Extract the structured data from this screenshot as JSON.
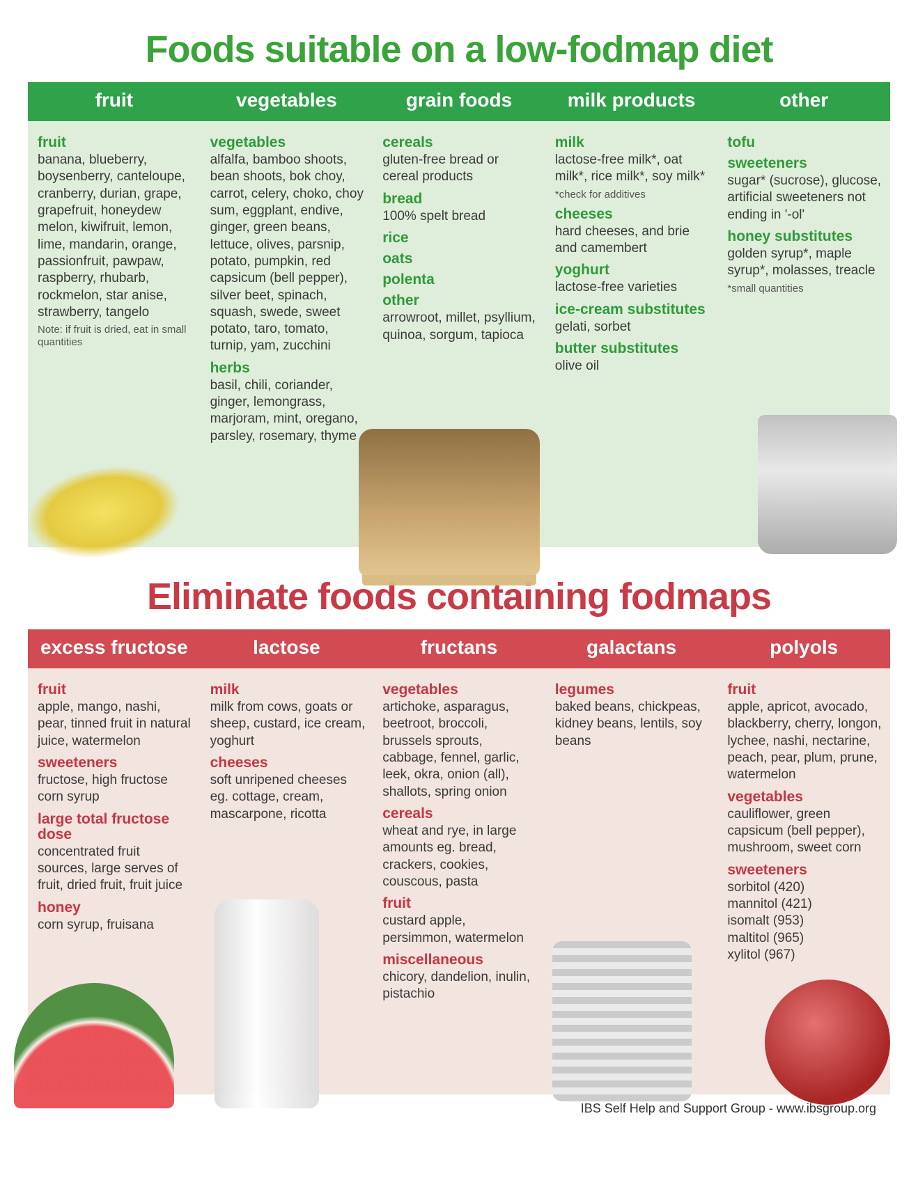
{
  "colors": {
    "green_title": "#3aa33a",
    "green_header_bg": "#2fa24a",
    "green_body_bg": "#dfeeda",
    "green_subhead": "#2f9a3a",
    "red_title": "#c83a46",
    "red_header_bg": "#d24a52",
    "red_body_bg": "#f2e4de",
    "red_subhead": "#c23844",
    "text": "#3a3a3a",
    "white": "#ffffff"
  },
  "typography": {
    "title_fontsize": 54,
    "header_fontsize": 28,
    "subhead_fontsize": 21,
    "body_fontsize": 19,
    "note_fontsize": 15,
    "footer_fontsize": 18
  },
  "suitable": {
    "title": "Foods suitable on a low-fodmap diet",
    "headers": [
      "fruit",
      "vegetables",
      "grain foods",
      "milk products",
      "other"
    ],
    "columns": [
      {
        "groups": [
          {
            "name": "fruit",
            "items": "banana, blueberry, boysenberry, canteloupe, cranberry, durian, grape, grapefruit, honeydew melon, kiwifruit, lemon, lime, mandarin, orange, passionfruit, pawpaw, raspberry, rhubarb, rockmelon, star anise, strawberry, tangelo"
          }
        ],
        "note": "Note: if fruit is dried, eat in small quantities",
        "image": "banana"
      },
      {
        "groups": [
          {
            "name": "vegetables",
            "items": "alfalfa, bamboo shoots, bean shoots, bok choy, carrot, celery, choko, choy sum, eggplant, endive, ginger, green beans, lettuce, olives, parsnip, potato, pumpkin, red capsicum (bell pepper), silver beet, spinach, squash, swede, sweet potato, taro, tomato, turnip, yam, zucchini"
          },
          {
            "name": "herbs",
            "items": "basil, chili, coriander, ginger, lemongrass, marjoram, mint, oregano, parsley, rosemary, thyme"
          }
        ]
      },
      {
        "groups": [
          {
            "name": "cereals",
            "items": "gluten-free bread or cereal products"
          },
          {
            "name": "bread",
            "items": "100% spelt bread"
          },
          {
            "name": "rice",
            "items": ""
          },
          {
            "name": "oats",
            "items": ""
          },
          {
            "name": "polenta",
            "items": ""
          },
          {
            "name": "other",
            "items": "arrowroot, millet, psyllium, quinoa, sorgum, tapioca"
          }
        ],
        "image": "bread"
      },
      {
        "groups": [
          {
            "name": "milk",
            "items": "lactose-free milk*, oat milk*, rice milk*, soy milk*"
          },
          {
            "name": "",
            "items": "",
            "note": "*check for additives"
          },
          {
            "name": "cheeses",
            "items": "hard cheeses, and brie and camembert"
          },
          {
            "name": "yoghurt",
            "items": "lactose-free varieties"
          },
          {
            "name": "ice-cream substitutes",
            "items": "gelati, sorbet"
          },
          {
            "name": "butter substitutes",
            "items": "olive oil"
          }
        ]
      },
      {
        "groups": [
          {
            "name": "tofu",
            "items": ""
          },
          {
            "name": "sweeteners",
            "items": "sugar* (sucrose), glucose, artificial sweeteners not ending in '-ol'"
          },
          {
            "name": "honey substitutes",
            "items": "golden syrup*, maple syrup*, molasses, treacle"
          }
        ],
        "note": "*small quantities",
        "image": "cup"
      }
    ]
  },
  "eliminate": {
    "title": "Eliminate foods containing fodmaps",
    "headers": [
      "excess fructose",
      "lactose",
      "fructans",
      "galactans",
      "polyols"
    ],
    "columns": [
      {
        "groups": [
          {
            "name": "fruit",
            "items": "apple, mango, nashi, pear, tinned fruit in natural juice, watermelon"
          },
          {
            "name": "sweeteners",
            "items": "fructose, high fructose corn syrup"
          },
          {
            "name": "large total fructose dose",
            "items": "concentrated fruit sources, large serves of fruit, dried fruit, fruit juice"
          },
          {
            "name": "honey",
            "items": "corn syrup, fruisana"
          }
        ],
        "image": "watermelon"
      },
      {
        "groups": [
          {
            "name": "milk",
            "items": "milk from cows, goats or sheep, custard, ice cream, yoghurt"
          },
          {
            "name": "cheeses",
            "items": "soft unripened cheeses eg. cottage, cream, mascarpone, ricotta"
          }
        ],
        "image": "milk"
      },
      {
        "groups": [
          {
            "name": "vegetables",
            "items": "artichoke, asparagus, beetroot, broccoli, brussels sprouts, cabbage, fennel, garlic,  leek, okra, onion (all), shallots, spring onion"
          },
          {
            "name": "cereals",
            "items": "wheat and rye, in large amounts eg. bread, crackers, cookies, couscous, pasta"
          },
          {
            "name": "fruit",
            "items": "custard apple, persimmon, watermelon"
          },
          {
            "name": "miscellaneous",
            "items": "chicory, dandelion, inulin, pistachio"
          }
        ]
      },
      {
        "groups": [
          {
            "name": "legumes",
            "items": "baked beans, chickpeas, kidney beans, lentils, soy beans"
          }
        ],
        "image": "can"
      },
      {
        "groups": [
          {
            "name": "fruit",
            "items": "apple, apricot, avocado, blackberry, cherry, longon, lychee, nashi, nectarine,  peach, pear, plum, prune, watermelon"
          },
          {
            "name": "vegetables",
            "items": "cauliflower, green capsicum (bell pepper), mushroom, sweet corn"
          },
          {
            "name": "sweeteners",
            "items": "sorbitol (420)\nmannitol (421)\nisomalt (953)\nmaltitol (965)\nxylitol (967)"
          }
        ],
        "image": "apple"
      }
    ]
  },
  "footer": "IBS Self Help and Support Group - www.ibsgroup.org"
}
